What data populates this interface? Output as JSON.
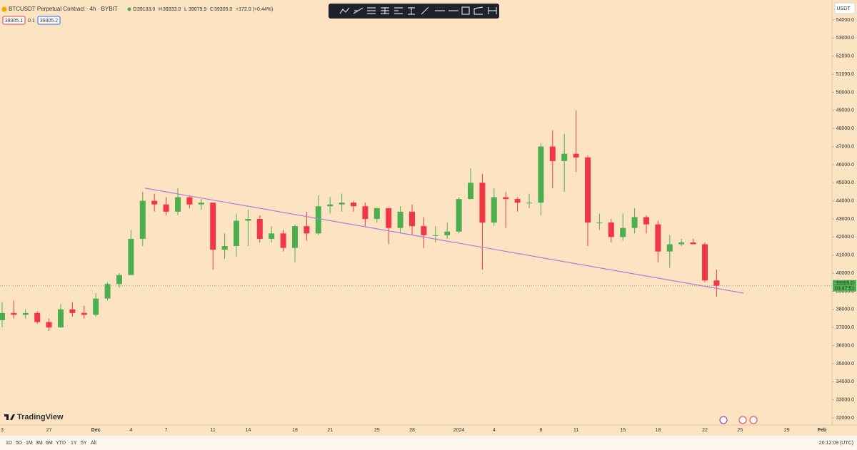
{
  "chart_data": {
    "type": "candlestick",
    "title": "BTCUSDT Perpetual Contract · 4h · BYBIT",
    "legend": [
      {
        "key": "O",
        "value": 39133.0,
        "label": "39133.0"
      },
      {
        "key": "H",
        "value": 39333.0,
        "label": "39333.0"
      },
      {
        "key": "L",
        "value": 39079.9,
        "label": "39079.9"
      },
      {
        "key": "C",
        "value": 39305.0,
        "label": "39305.0"
      }
    ],
    "change": "+172.0 (+0.44%)",
    "categories": [
      "3",
      null,
      null,
      null,
      "27",
      null,
      null,
      null,
      "Dec",
      null,
      null,
      "4",
      null,
      null,
      "7",
      null,
      null,
      null,
      "11",
      null,
      null,
      "14",
      null,
      null,
      null,
      "18",
      null,
      null,
      "21",
      null,
      null,
      null,
      "25",
      null,
      null,
      "28",
      null,
      null,
      null,
      "2024",
      null,
      null,
      "4",
      null,
      null,
      null,
      "8",
      null,
      null,
      "11",
      null,
      null,
      null,
      "15",
      null,
      null,
      "18",
      null,
      null,
      null,
      "22",
      null,
      null,
      "25",
      null,
      null,
      null,
      "29",
      null,
      null,
      "Feb"
    ],
    "open": [
      37400,
      37800,
      37700,
      37800,
      37300,
      37000,
      38000,
      37800,
      37700,
      38600,
      39400,
      39900,
      41900,
      44000,
      43800,
      43400,
      44200,
      43800,
      43900,
      41300,
      41500,
      42900,
      43000,
      41900,
      42200,
      41400,
      42600,
      42200,
      43700,
      43800,
      43900,
      43700,
      43000,
      43600,
      42500,
      43400,
      42600,
      42100,
      42100,
      42300,
      44100,
      45000,
      42800,
      44200,
      44100,
      43900,
      43900,
      47000,
      46200,
      46600,
      46400,
      42800,
      42800,
      42000,
      42500,
      43100,
      42700,
      41200,
      41600,
      41700,
      41600,
      39600,
      null,
      null,
      null,
      null,
      null,
      null,
      null,
      null,
      null
    ],
    "high": [
      38400,
      38500,
      38000,
      37900,
      37500,
      38300,
      38400,
      38200,
      38900,
      39500,
      40000,
      42400,
      44500,
      44400,
      44200,
      44700,
      44300,
      44100,
      43900,
      42200,
      43300,
      43500,
      43200,
      42600,
      42400,
      42700,
      43400,
      44300,
      44200,
      44400,
      44000,
      43900,
      43600,
      43600,
      43700,
      43800,
      43100,
      42600,
      42800,
      44200,
      45800,
      45500,
      44700,
      44500,
      44200,
      44400,
      47200,
      47900,
      47700,
      49000,
      46500,
      43300,
      43000,
      43300,
      43600,
      43200,
      42900,
      42100,
      41900,
      41900,
      41700,
      40200,
      null,
      null,
      null,
      null,
      null,
      null,
      null,
      null,
      null
    ],
    "low": [
      37000,
      37500,
      37500,
      37200,
      36800,
      37000,
      37600,
      37500,
      37600,
      38500,
      39200,
      39900,
      41500,
      43400,
      43200,
      43200,
      43600,
      43500,
      40200,
      40800,
      40900,
      41500,
      41700,
      41700,
      41200,
      40600,
      41800,
      42100,
      43300,
      43400,
      43400,
      42600,
      42800,
      41600,
      42200,
      42100,
      41400,
      41700,
      41900,
      42200,
      44100,
      40200,
      42600,
      42500,
      43400,
      43600,
      43200,
      44700,
      44500,
      45600,
      41500,
      42400,
      41700,
      41800,
      42200,
      42200,
      40600,
      40300,
      41500,
      41600,
      39500,
      38700,
      null,
      null,
      null,
      null,
      null,
      null,
      null,
      null,
      null
    ],
    "close": [
      37800,
      37700,
      37800,
      37300,
      37000,
      38000,
      37800,
      37700,
      38600,
      39400,
      39900,
      41900,
      44000,
      43800,
      43400,
      44200,
      43800,
      43900,
      41300,
      41500,
      42900,
      43000,
      41900,
      42200,
      41400,
      42600,
      42200,
      43700,
      43800,
      43900,
      43700,
      43000,
      43600,
      42500,
      43400,
      42600,
      42100,
      42100,
      42300,
      44100,
      45000,
      42800,
      44200,
      44100,
      43900,
      43900,
      47000,
      46200,
      46600,
      46400,
      42800,
      42800,
      42000,
      42500,
      43100,
      42700,
      41200,
      41600,
      41700,
      41600,
      39600,
      39305,
      null,
      null,
      null,
      null,
      null,
      null,
      null,
      null,
      null
    ],
    "up_color": "#4caf50",
    "down_color": "#f23645",
    "ylim": [
      32000,
      54000
    ],
    "yticks": [
      {
        "value": 32000,
        "label": "32000.0"
      },
      {
        "value": 33000,
        "label": "33000.0"
      },
      {
        "value": 34000,
        "label": "34000.0"
      },
      {
        "value": 35000,
        "label": "35000.0"
      },
      {
        "value": 36000,
        "label": "36000.0"
      },
      {
        "value": 37000,
        "label": "37000.0"
      },
      {
        "value": 38000,
        "label": "38000.0"
      },
      {
        "value": 39000,
        "label": "39000.0"
      },
      {
        "value": 40000,
        "label": "40000.0"
      },
      {
        "value": 41000,
        "label": "41000.0"
      },
      {
        "value": 42000,
        "label": "42000.0"
      },
      {
        "value": 43000,
        "label": "43000.0"
      },
      {
        "value": 44000,
        "label": "44000.0"
      },
      {
        "value": 45000,
        "label": "45000.0"
      },
      {
        "value": 46000,
        "label": "46000.0"
      },
      {
        "value": 47000,
        "label": "47000.0"
      },
      {
        "value": 48000,
        "label": "48000.0"
      },
      {
        "value": 49000,
        "label": "49000.0"
      },
      {
        "value": 50000,
        "label": "50000.0"
      },
      {
        "value": 51000,
        "label": "51000.0"
      },
      {
        "value": 52000,
        "label": "52000.0"
      },
      {
        "value": 53000,
        "label": "53000.0"
      },
      {
        "value": 54000,
        "label": "54000.0"
      }
    ],
    "unit": "USDT",
    "last_price": {
      "value": 39305.0,
      "label": "39305.0"
    },
    "countdown": "03:47:51",
    "trendline": {
      "values": [
        44700,
        38900
      ],
      "color": "#b07cd8"
    }
  },
  "order_box": {
    "bid": "39305.1",
    "spread": "0.1",
    "ask": "39305.2"
  },
  "brand": "TradingView",
  "timeframes": [
    "1D",
    "5D",
    "1M",
    "3M",
    "6M",
    "YTD",
    "1Y",
    "5Y",
    "All"
  ],
  "clock": "20:12:09 (UTC)"
}
